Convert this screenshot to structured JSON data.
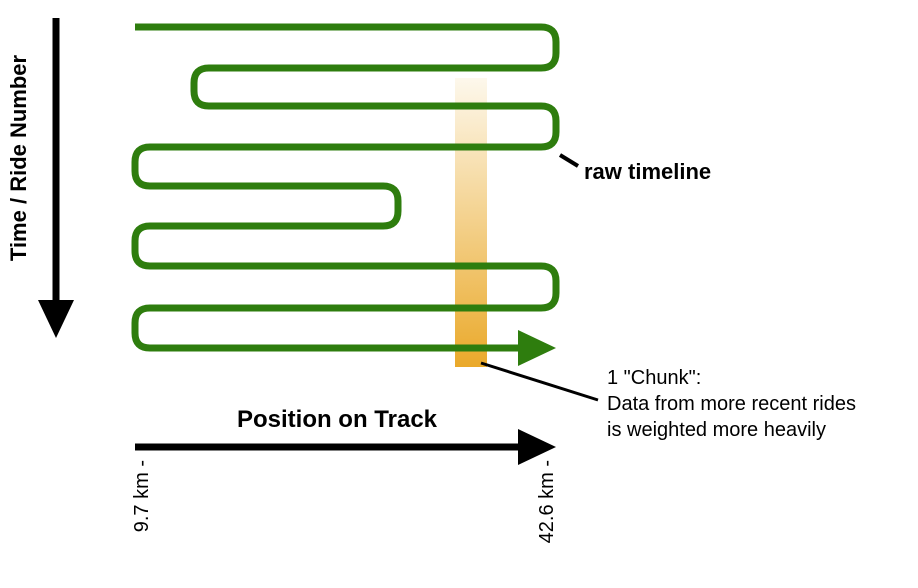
{
  "axes": {
    "y_label": "Time / Ride Number",
    "x_label": "Position on Track",
    "x_start_tick": "9.7 km -",
    "x_end_tick": "42.6 km -"
  },
  "annotations": {
    "raw_timeline": "raw timeline",
    "chunk_line1": "1 \"Chunk\":",
    "chunk_line2": "Data from more recent rides",
    "chunk_line3": "is weighted more heavily"
  },
  "colors": {
    "timeline": "#2e7d0e",
    "chunk_top": "#fdf8ec",
    "chunk_bottom": "#eaa92a",
    "axis": "#000000"
  }
}
